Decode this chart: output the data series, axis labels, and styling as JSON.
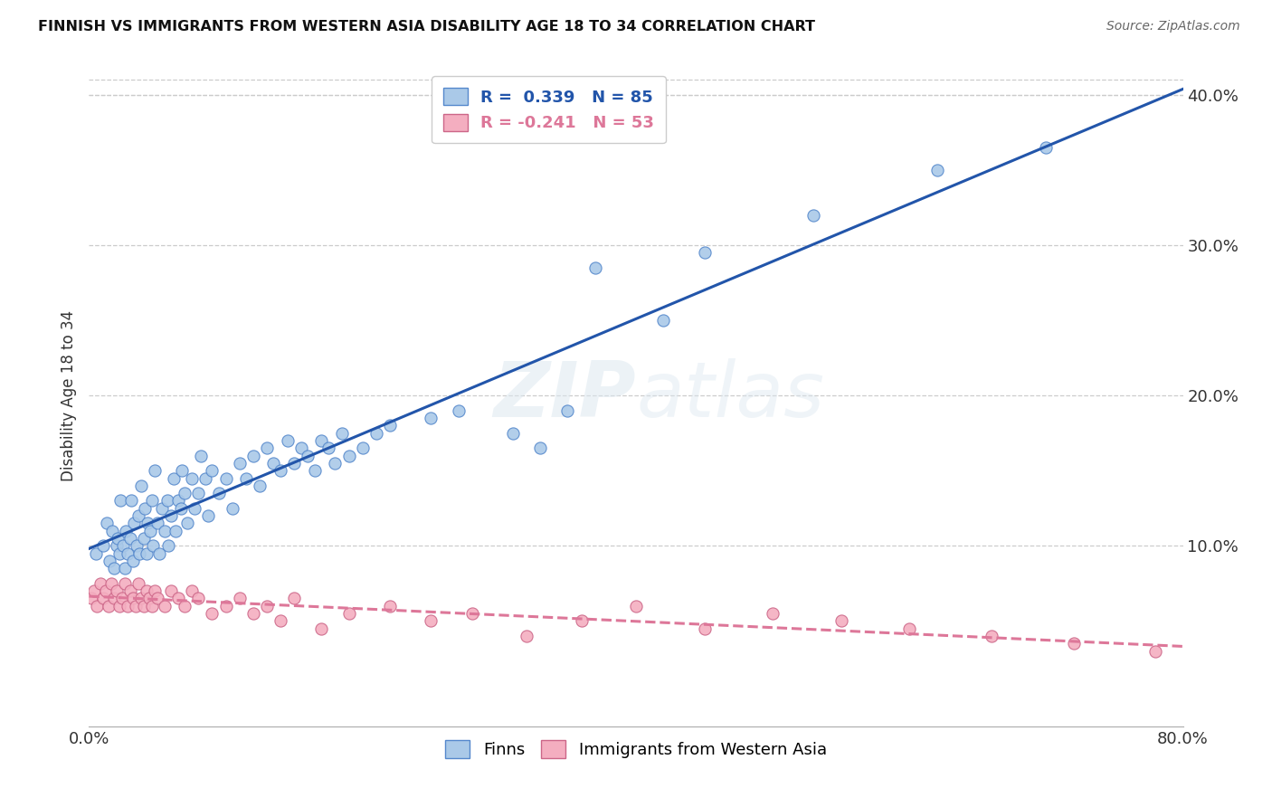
{
  "title": "FINNISH VS IMMIGRANTS FROM WESTERN ASIA DISABILITY AGE 18 TO 34 CORRELATION CHART",
  "source": "Source: ZipAtlas.com",
  "ylabel": "Disability Age 18 to 34",
  "xlim": [
    0.0,
    0.8
  ],
  "ylim": [
    -0.02,
    0.42
  ],
  "color_finns": "#aac9e8",
  "color_finns_edge": "#5588cc",
  "color_immigrants": "#f4aec0",
  "color_immigrants_edge": "#cc6688",
  "color_line_finns": "#2255aa",
  "color_line_immigrants": "#dd7799",
  "watermark": "ZIPatlas",
  "finns_x": [
    0.005,
    0.01,
    0.013,
    0.015,
    0.017,
    0.018,
    0.02,
    0.021,
    0.022,
    0.023,
    0.025,
    0.026,
    0.027,
    0.028,
    0.03,
    0.031,
    0.032,
    0.033,
    0.035,
    0.036,
    0.037,
    0.038,
    0.04,
    0.041,
    0.042,
    0.043,
    0.045,
    0.046,
    0.047,
    0.048,
    0.05,
    0.051,
    0.053,
    0.055,
    0.057,
    0.058,
    0.06,
    0.062,
    0.063,
    0.065,
    0.067,
    0.068,
    0.07,
    0.072,
    0.075,
    0.077,
    0.08,
    0.082,
    0.085,
    0.087,
    0.09,
    0.095,
    0.1,
    0.105,
    0.11,
    0.115,
    0.12,
    0.125,
    0.13,
    0.135,
    0.14,
    0.145,
    0.15,
    0.155,
    0.16,
    0.165,
    0.17,
    0.175,
    0.18,
    0.185,
    0.19,
    0.2,
    0.21,
    0.22,
    0.25,
    0.27,
    0.31,
    0.33,
    0.35,
    0.37,
    0.42,
    0.45,
    0.53,
    0.62,
    0.7
  ],
  "finns_y": [
    0.095,
    0.1,
    0.115,
    0.09,
    0.11,
    0.085,
    0.1,
    0.105,
    0.095,
    0.13,
    0.1,
    0.085,
    0.11,
    0.095,
    0.105,
    0.13,
    0.09,
    0.115,
    0.1,
    0.12,
    0.095,
    0.14,
    0.105,
    0.125,
    0.095,
    0.115,
    0.11,
    0.13,
    0.1,
    0.15,
    0.115,
    0.095,
    0.125,
    0.11,
    0.13,
    0.1,
    0.12,
    0.145,
    0.11,
    0.13,
    0.125,
    0.15,
    0.135,
    0.115,
    0.145,
    0.125,
    0.135,
    0.16,
    0.145,
    0.12,
    0.15,
    0.135,
    0.145,
    0.125,
    0.155,
    0.145,
    0.16,
    0.14,
    0.165,
    0.155,
    0.15,
    0.17,
    0.155,
    0.165,
    0.16,
    0.15,
    0.17,
    0.165,
    0.155,
    0.175,
    0.16,
    0.165,
    0.175,
    0.18,
    0.185,
    0.19,
    0.175,
    0.165,
    0.19,
    0.285,
    0.25,
    0.295,
    0.32,
    0.35,
    0.365
  ],
  "immigrants_x": [
    0.002,
    0.004,
    0.006,
    0.008,
    0.01,
    0.012,
    0.014,
    0.016,
    0.018,
    0.02,
    0.022,
    0.024,
    0.026,
    0.028,
    0.03,
    0.032,
    0.034,
    0.036,
    0.038,
    0.04,
    0.042,
    0.044,
    0.046,
    0.048,
    0.05,
    0.055,
    0.06,
    0.065,
    0.07,
    0.075,
    0.08,
    0.09,
    0.1,
    0.11,
    0.12,
    0.13,
    0.14,
    0.15,
    0.17,
    0.19,
    0.22,
    0.25,
    0.28,
    0.32,
    0.36,
    0.4,
    0.45,
    0.5,
    0.55,
    0.6,
    0.66,
    0.72,
    0.78
  ],
  "immigrants_y": [
    0.065,
    0.07,
    0.06,
    0.075,
    0.065,
    0.07,
    0.06,
    0.075,
    0.065,
    0.07,
    0.06,
    0.065,
    0.075,
    0.06,
    0.07,
    0.065,
    0.06,
    0.075,
    0.065,
    0.06,
    0.07,
    0.065,
    0.06,
    0.07,
    0.065,
    0.06,
    0.07,
    0.065,
    0.06,
    0.07,
    0.065,
    0.055,
    0.06,
    0.065,
    0.055,
    0.06,
    0.05,
    0.065,
    0.045,
    0.055,
    0.06,
    0.05,
    0.055,
    0.04,
    0.05,
    0.06,
    0.045,
    0.055,
    0.05,
    0.045,
    0.04,
    0.035,
    0.03
  ]
}
